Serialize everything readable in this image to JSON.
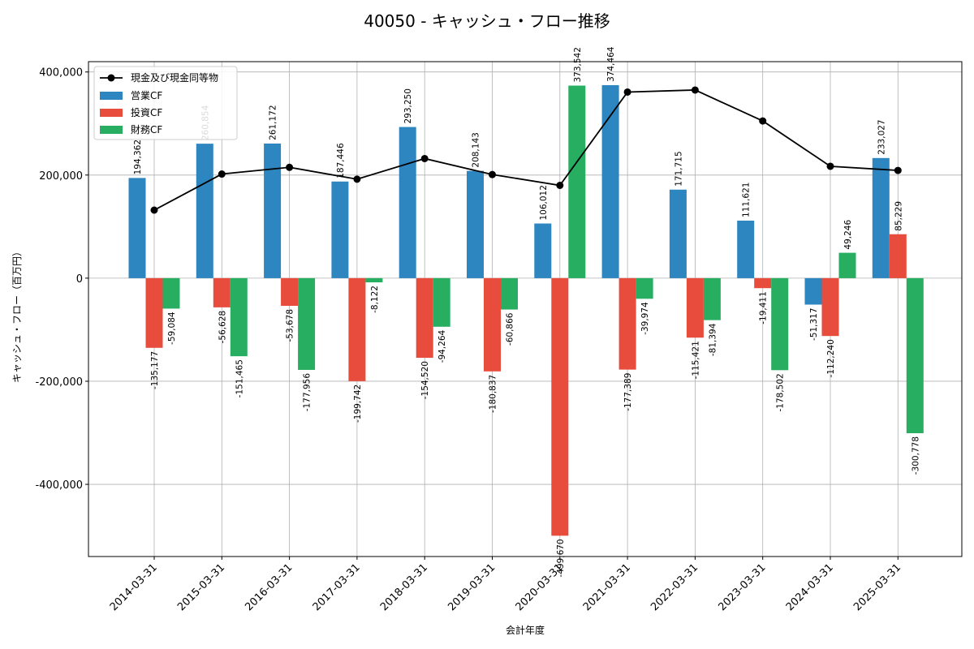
{
  "chart_data": {
    "type": "bar+line",
    "title": "40050 - キャッシュ・フロー推移",
    "xlabel": "会計年度",
    "ylabel": "キャッシュ・フロー（百万円）",
    "ylim": [
      -540000,
      420000
    ],
    "yticks": [
      -400000,
      -200000,
      0,
      200000,
      400000
    ],
    "ytick_labels": [
      "-400,000",
      "-200,000",
      "0",
      "200,000",
      "400,000"
    ],
    "grid": true,
    "legend_position": "top-left",
    "categories": [
      "2014-03-31",
      "2015-03-31",
      "2016-03-31",
      "2017-03-31",
      "2018-03-31",
      "2019-03-31",
      "2020-03-31",
      "2021-03-31",
      "2022-03-31",
      "2023-03-31",
      "2024-03-31",
      "2025-03-31"
    ],
    "series": [
      {
        "name": "営業CF",
        "kind": "bar",
        "color": "#2e86c1",
        "values": [
          194362,
          260854,
          261172,
          187446,
          293250,
          208143,
          106012,
          374464,
          171715,
          111621,
          -51317,
          233027
        ],
        "labels": [
          "194,362",
          "260,854",
          "261,172",
          "187,446",
          "293,250",
          "208,143",
          "106,012",
          "374,464",
          "171,715",
          "111,621",
          "-51,317",
          "233,027"
        ]
      },
      {
        "name": "投資CF",
        "kind": "bar",
        "color": "#e74c3c",
        "values": [
          -135177,
          -56628,
          -53678,
          -199742,
          -154520,
          -180837,
          -499670,
          -177389,
          -115421,
          -19411,
          -112240,
          85229
        ],
        "labels": [
          "-135,177",
          "-56,628",
          "-53,678",
          "-199,742",
          "-154,520",
          "-180,837",
          "-499,670",
          "-177,389",
          "-115,421",
          "-19,411",
          "-112,240",
          "85,229"
        ]
      },
      {
        "name": "財務CF",
        "kind": "bar",
        "color": "#27ae60",
        "values": [
          -59084,
          -151465,
          -177956,
          -8122,
          -94264,
          -60866,
          373542,
          -39974,
          -81394,
          -178502,
          49246,
          -300778
        ],
        "labels": [
          "-59,084",
          "-151,465",
          "-177,956",
          "-8,122",
          "-94,264",
          "-60,866",
          "373,542",
          "-39,974",
          "-81,394",
          "-178,502",
          "49,246",
          "-300,778"
        ]
      },
      {
        "name": "現金及び現金同等物",
        "kind": "line",
        "color": "#000000",
        "values": [
          132000,
          202000,
          215000,
          192000,
          232000,
          201000,
          180000,
          361000,
          365000,
          305000,
          217000,
          209000
        ]
      }
    ]
  }
}
